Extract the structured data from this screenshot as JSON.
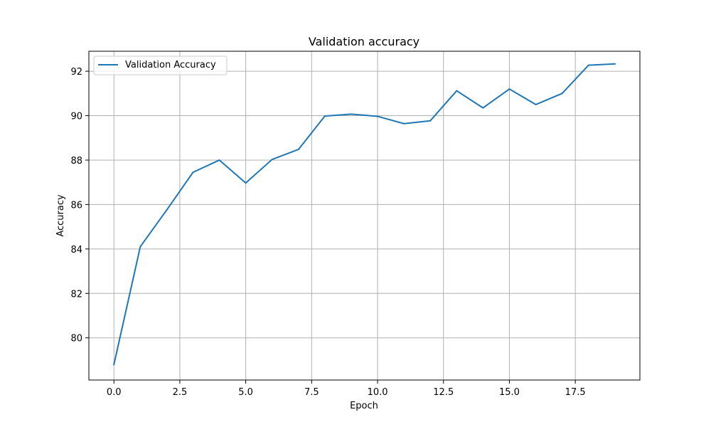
{
  "chart_data": {
    "type": "line",
    "title": "Validation accuracy",
    "xlabel": "Epoch",
    "ylabel": "Accuracy",
    "xlim": [
      -0.95,
      19.95
    ],
    "ylim": [
      78.1,
      92.9
    ],
    "grid": true,
    "legend_position": "upper-left",
    "xticks": [
      0.0,
      2.5,
      5.0,
      7.5,
      10.0,
      12.5,
      15.0,
      17.5
    ],
    "xtick_labels": [
      "0.0",
      "2.5",
      "5.0",
      "7.5",
      "10.0",
      "12.5",
      "15.0",
      "17.5"
    ],
    "yticks": [
      80,
      82,
      84,
      86,
      88,
      90,
      92
    ],
    "ytick_labels": [
      "80",
      "82",
      "84",
      "86",
      "88",
      "90",
      "92"
    ],
    "series": [
      {
        "name": "Validation Accuracy",
        "color": "#1f77b4",
        "x": [
          0,
          1,
          2,
          3,
          4,
          5,
          6,
          7,
          8,
          9,
          10,
          11,
          12,
          13,
          14,
          15,
          16,
          17,
          18,
          19
        ],
        "y": [
          78.8,
          84.1,
          85.75,
          87.45,
          88.0,
          86.97,
          88.03,
          88.48,
          89.98,
          90.07,
          89.97,
          89.64,
          89.77,
          91.12,
          90.35,
          91.2,
          90.5,
          91.0,
          92.27,
          92.33
        ]
      }
    ]
  }
}
